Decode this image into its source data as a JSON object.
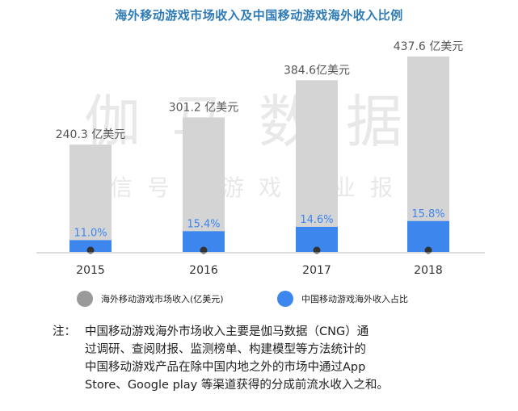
{
  "title": "海外移动游戏市场收入及中国移动游戏海外收入比例",
  "colors": {
    "title": "#2e7bb6",
    "gray_bar": "#d4d4d4",
    "blue_bar": "#3d86ee",
    "dot": "#333333",
    "label_gray": "#555555",
    "label_blue": "#3d86ee",
    "axis": "#bbbbbb",
    "watermark": "#e8e8e8"
  },
  "watermark": {
    "line1": "伽马数据",
    "line2": "微信号：游戏产业报告"
  },
  "chart_data": {
    "type": "bar",
    "categories": [
      "2015",
      "2016",
      "2017",
      "2018"
    ],
    "series": [
      {
        "name": "海外移动游戏市场收入(亿美元)",
        "values": [
          240.3,
          301.2,
          384.6,
          437.6
        ],
        "labels": [
          "240.3 亿美元",
          "301.2 亿美元",
          "384.6亿美元",
          "437.6 亿美元"
        ]
      },
      {
        "name": "中国移动游戏海外收入占比",
        "values": [
          11.0,
          15.4,
          14.6,
          15.8
        ],
        "labels": [
          "11.0%",
          "15.4%",
          "14.6%",
          "15.8%"
        ]
      }
    ],
    "legend": "bottom"
  },
  "note": {
    "prefix": "注：",
    "text": "中国移动游戏海外市场收入主要是伽马数据（CNG）通\n过调研、查阅财报、监测榜单、构建模型等方法统计的\n中国移动游戏产品在除中国内地之外的市场中通过App\nStore、Google play 等渠道获得的分成前流水收入之和。"
  }
}
